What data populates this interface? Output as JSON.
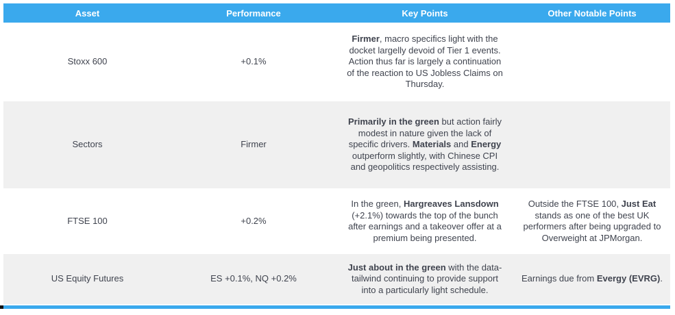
{
  "colors": {
    "header_bg": "#3aa9ed",
    "header_text": "#ffffff",
    "alt_row_bg": "#f0f0f0",
    "text": "#3f434e",
    "bottom_line": "#3aa9ed"
  },
  "table": {
    "columns": [
      {
        "label": "Asset"
      },
      {
        "label": "Performance"
      },
      {
        "label": "Key Points"
      },
      {
        "label": "Other Notable Points"
      }
    ],
    "rows": [
      {
        "asset": "Stoxx 600",
        "performance": "+0.1%",
        "key_points": [
          {
            "text": "Firmer",
            "bold": true
          },
          {
            "text": ", macro specifics light with the docket largelly devoid of Tier 1 events. Action thus far is largely a continuation of the reaction to US Jobless Claims on Thursday.",
            "bold": false
          }
        ],
        "other_notable_points": []
      },
      {
        "asset": "Sectors",
        "performance": "Firmer",
        "key_points": [
          {
            "text": "Primarily in the green",
            "bold": true
          },
          {
            "text": " but action fairly modest in nature given the lack of specific drivers. ",
            "bold": false
          },
          {
            "text": "Materials",
            "bold": true
          },
          {
            "text": " and ",
            "bold": false
          },
          {
            "text": "Energy",
            "bold": true
          },
          {
            "text": " outperform slightly, with Chinese CPI and geopolitics respectively assisting.",
            "bold": false
          }
        ],
        "other_notable_points": []
      },
      {
        "asset": "FTSE 100",
        "performance": "+0.2%",
        "key_points": [
          {
            "text": "In the green, ",
            "bold": false
          },
          {
            "text": "Hargreaves Lansdown",
            "bold": true
          },
          {
            "text": " (+2.1%) towards the top of the bunch after earnings and a takeover offer at a premium being presented.",
            "bold": false
          }
        ],
        "other_notable_points": [
          {
            "text": "Outside the FTSE 100, ",
            "bold": false
          },
          {
            "text": "Just Eat",
            "bold": true
          },
          {
            "text": " stands as one of the best UK performers after being upgraded to Overweight at JPMorgan.",
            "bold": false
          }
        ]
      },
      {
        "asset": "US Equity Futures",
        "performance": "ES +0.1%, NQ +0.2%",
        "key_points": [
          {
            "text": "Just about in the green",
            "bold": true
          },
          {
            "text": " with the data-tailwind continuing to provide support into a particularly light schedule.",
            "bold": false
          }
        ],
        "other_notable_points": [
          {
            "text": "Earnings due from ",
            "bold": false
          },
          {
            "text": "Evergy (EVRG)",
            "bold": true
          },
          {
            "text": ".",
            "bold": false
          }
        ]
      }
    ]
  }
}
